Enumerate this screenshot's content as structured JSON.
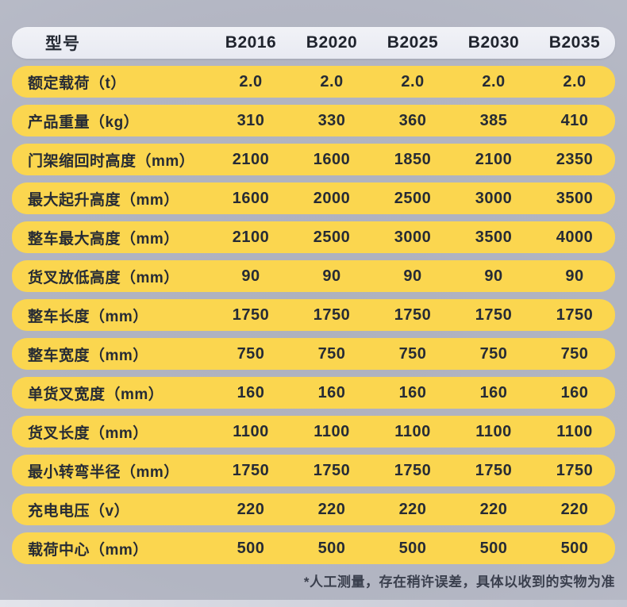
{
  "table": {
    "header": {
      "label": "型号",
      "models": [
        "B2016",
        "B2020",
        "B2025",
        "B2030",
        "B2035"
      ]
    },
    "rows": [
      {
        "label": "额定载荷（t）",
        "values": [
          "2.0",
          "2.0",
          "2.0",
          "2.0",
          "2.0"
        ]
      },
      {
        "label": "产品重量（kg）",
        "values": [
          "310",
          "330",
          "360",
          "385",
          "410"
        ]
      },
      {
        "label": "门架缩回时高度（mm）",
        "values": [
          "2100",
          "1600",
          "1850",
          "2100",
          "2350"
        ]
      },
      {
        "label": "最大起升高度（mm）",
        "values": [
          "1600",
          "2000",
          "2500",
          "3000",
          "3500"
        ]
      },
      {
        "label": "整车最大高度（mm）",
        "values": [
          "2100",
          "2500",
          "3000",
          "3500",
          "4000"
        ]
      },
      {
        "label": "货叉放低高度（mm）",
        "values": [
          "90",
          "90",
          "90",
          "90",
          "90"
        ]
      },
      {
        "label": "整车长度（mm）",
        "values": [
          "1750",
          "1750",
          "1750",
          "1750",
          "1750"
        ]
      },
      {
        "label": "整车宽度（mm）",
        "values": [
          "750",
          "750",
          "750",
          "750",
          "750"
        ]
      },
      {
        "label": "单货叉宽度（mm）",
        "values": [
          "160",
          "160",
          "160",
          "160",
          "160"
        ]
      },
      {
        "label": "货叉长度（mm）",
        "values": [
          "1100",
          "1100",
          "1100",
          "1100",
          "1100"
        ]
      },
      {
        "label": "最小转弯半径（mm）",
        "values": [
          "1750",
          "1750",
          "1750",
          "1750",
          "1750"
        ]
      },
      {
        "label": "充电电压（v）",
        "values": [
          "220",
          "220",
          "220",
          "220",
          "220"
        ]
      },
      {
        "label": "载荷中心（mm）",
        "values": [
          "500",
          "500",
          "500",
          "500",
          "500"
        ]
      }
    ],
    "footnote": "*人工测量，存在稍许误差，具体以收到的实物为准"
  },
  "colors": {
    "row_yellow": "#fbd64f",
    "header_bg": "#eceef4",
    "text_dark": "#262b35",
    "page_bg": "#b2b5c2"
  }
}
